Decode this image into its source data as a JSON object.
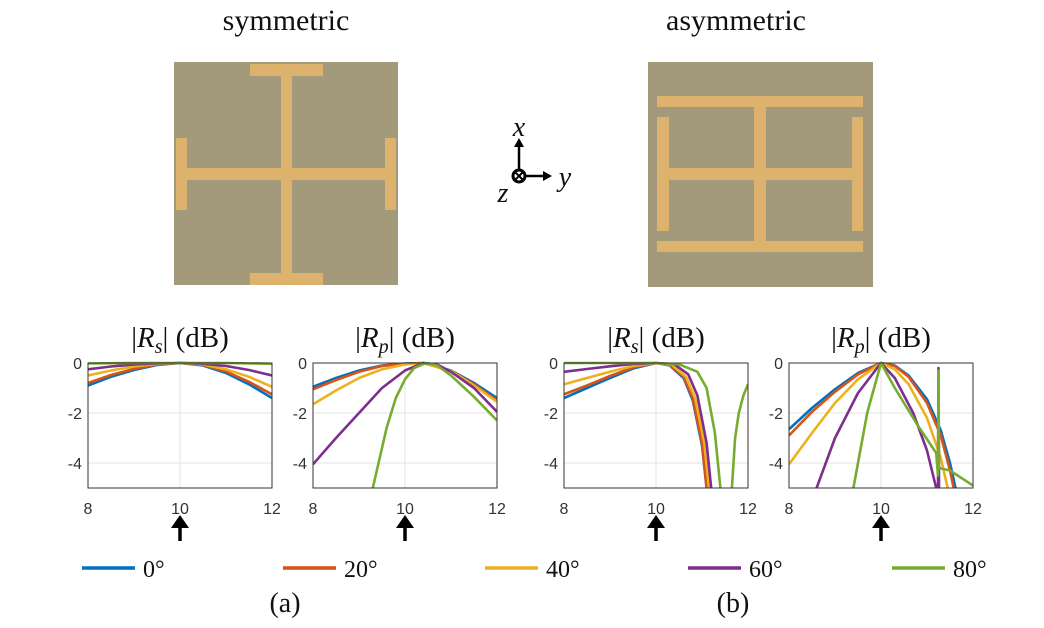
{
  "panels": [
    {
      "label": "(a)",
      "title": "symmetric"
    },
    {
      "label": "(b)",
      "title": "asymmetric"
    }
  ],
  "axes_glyph": {
    "x": "x",
    "y": "y",
    "z": "z"
  },
  "colors": {
    "substrate": "#a39a7c",
    "metal": "#dcb26c"
  },
  "legend": {
    "entries": [
      "0°",
      "20°",
      "40°",
      "60°",
      "80°"
    ],
    "colors": [
      "#0072BD",
      "#D95319",
      "#EDB120",
      "#7E2F8E",
      "#77AC30"
    ]
  },
  "chart_data": [
    {
      "type": "line",
      "panel": "(a)",
      "title_symbol": "R",
      "title_sub": "s",
      "title_unit": "(dB)",
      "xlim": [
        8,
        12
      ],
      "ylim": [
        -5,
        0
      ],
      "xticks": [
        8,
        10,
        12
      ],
      "yticks": [
        0,
        -2,
        -4
      ],
      "grid": true,
      "arrow_at_x": 10,
      "series": [
        {
          "name": "0°",
          "points": [
            [
              8,
              -0.9
            ],
            [
              8.5,
              -0.55
            ],
            [
              9,
              -0.28
            ],
            [
              9.5,
              -0.08
            ],
            [
              10,
              0
            ],
            [
              10.5,
              -0.1
            ],
            [
              11,
              -0.4
            ],
            [
              11.5,
              -0.85
            ],
            [
              12,
              -1.4
            ]
          ]
        },
        {
          "name": "20°",
          "points": [
            [
              8,
              -0.8
            ],
            [
              8.5,
              -0.48
            ],
            [
              9,
              -0.23
            ],
            [
              9.5,
              -0.06
            ],
            [
              10,
              0
            ],
            [
              10.5,
              -0.08
            ],
            [
              11,
              -0.34
            ],
            [
              11.5,
              -0.75
            ],
            [
              12,
              -1.25
            ]
          ]
        },
        {
          "name": "40°",
          "points": [
            [
              8,
              -0.5
            ],
            [
              8.5,
              -0.3
            ],
            [
              9,
              -0.14
            ],
            [
              9.5,
              -0.04
            ],
            [
              10,
              0
            ],
            [
              10.5,
              -0.06
            ],
            [
              11,
              -0.25
            ],
            [
              11.5,
              -0.55
            ],
            [
              12,
              -0.95
            ]
          ]
        },
        {
          "name": "60°",
          "points": [
            [
              8,
              -0.25
            ],
            [
              8.5,
              -0.14
            ],
            [
              9,
              -0.06
            ],
            [
              9.5,
              -0.02
            ],
            [
              10,
              0
            ],
            [
              10.5,
              -0.03
            ],
            [
              11,
              -0.12
            ],
            [
              11.5,
              -0.28
            ],
            [
              12,
              -0.5
            ]
          ]
        },
        {
          "name": "80°",
          "points": [
            [
              8,
              -0.02
            ],
            [
              9,
              0
            ],
            [
              10,
              0
            ],
            [
              11,
              0
            ],
            [
              12,
              -0.03
            ]
          ]
        }
      ]
    },
    {
      "type": "line",
      "panel": "(a)",
      "title_symbol": "R",
      "title_sub": "p",
      "title_unit": "(dB)",
      "xlim": [
        8,
        12
      ],
      "ylim": [
        -5,
        0
      ],
      "xticks": [
        8,
        10,
        12
      ],
      "yticks": [
        0,
        -2,
        -4
      ],
      "grid": true,
      "arrow_at_x": 10,
      "series": [
        {
          "name": "0°",
          "points": [
            [
              8,
              -0.95
            ],
            [
              8.5,
              -0.6
            ],
            [
              9,
              -0.3
            ],
            [
              9.5,
              -0.1
            ],
            [
              10,
              -0.02
            ],
            [
              10.4,
              0
            ],
            [
              11,
              -0.3
            ],
            [
              11.5,
              -0.8
            ],
            [
              12,
              -1.4
            ]
          ]
        },
        {
          "name": "20°",
          "points": [
            [
              8,
              -1.05
            ],
            [
              8.5,
              -0.68
            ],
            [
              9,
              -0.35
            ],
            [
              9.5,
              -0.12
            ],
            [
              10,
              -0.03
            ],
            [
              10.4,
              0
            ],
            [
              11,
              -0.32
            ],
            [
              11.5,
              -0.85
            ],
            [
              12,
              -1.5
            ]
          ]
        },
        {
          "name": "40°",
          "points": [
            [
              8,
              -1.65
            ],
            [
              8.5,
              -1.1
            ],
            [
              9,
              -0.6
            ],
            [
              9.5,
              -0.25
            ],
            [
              10,
              -0.06
            ],
            [
              10.4,
              0
            ],
            [
              11,
              -0.32
            ],
            [
              11.5,
              -0.9
            ],
            [
              12,
              -1.55
            ]
          ]
        },
        {
          "name": "60°",
          "points": [
            [
              8,
              -4.05
            ],
            [
              8.5,
              -3.0
            ],
            [
              9,
              -2.0
            ],
            [
              9.5,
              -1.0
            ],
            [
              10,
              -0.3
            ],
            [
              10.4,
              0
            ],
            [
              10.7,
              -0.06
            ],
            [
              11,
              -0.35
            ],
            [
              11.5,
              -1.0
            ],
            [
              12,
              -1.95
            ]
          ]
        },
        {
          "name": "80°",
          "points": [
            [
              9.3,
              -5
            ],
            [
              9.6,
              -2.6
            ],
            [
              9.8,
              -1.4
            ],
            [
              10,
              -0.65
            ],
            [
              10.2,
              -0.2
            ],
            [
              10.45,
              0
            ],
            [
              10.7,
              -0.1
            ],
            [
              11,
              -0.5
            ],
            [
              11.5,
              -1.35
            ],
            [
              12,
              -2.3
            ]
          ]
        }
      ]
    },
    {
      "type": "line",
      "panel": "(b)",
      "title_symbol": "R",
      "title_sub": "s",
      "title_unit": "(dB)",
      "xlim": [
        8,
        12
      ],
      "ylim": [
        -5,
        0
      ],
      "xticks": [
        8,
        10,
        12
      ],
      "yticks": [
        0,
        -2,
        -4
      ],
      "grid": true,
      "arrow_at_x": 10,
      "series": [
        {
          "name": "0°",
          "points": [
            [
              8,
              -1.4
            ],
            [
              8.5,
              -1.0
            ],
            [
              9,
              -0.6
            ],
            [
              9.5,
              -0.22
            ],
            [
              10,
              0
            ],
            [
              10.3,
              -0.1
            ],
            [
              10.6,
              -0.6
            ],
            [
              10.8,
              -1.5
            ],
            [
              11,
              -3.3
            ],
            [
              11.1,
              -5
            ]
          ]
        },
        {
          "name": "20°",
          "points": [
            [
              8,
              -1.25
            ],
            [
              8.5,
              -0.9
            ],
            [
              9,
              -0.52
            ],
            [
              9.5,
              -0.18
            ],
            [
              10,
              0
            ],
            [
              10.3,
              -0.08
            ],
            [
              10.6,
              -0.55
            ],
            [
              10.8,
              -1.4
            ],
            [
              11,
              -3.2
            ],
            [
              11.1,
              -5
            ]
          ]
        },
        {
          "name": "40°",
          "points": [
            [
              8,
              -0.85
            ],
            [
              8.5,
              -0.6
            ],
            [
              9,
              -0.35
            ],
            [
              9.5,
              -0.12
            ],
            [
              10,
              0
            ],
            [
              10.35,
              -0.08
            ],
            [
              10.65,
              -0.55
            ],
            [
              10.85,
              -1.4
            ],
            [
              11.05,
              -3.2
            ],
            [
              11.15,
              -5
            ]
          ]
        },
        {
          "name": "60°",
          "points": [
            [
              8,
              -0.35
            ],
            [
              8.5,
              -0.24
            ],
            [
              9,
              -0.13
            ],
            [
              9.5,
              -0.04
            ],
            [
              10,
              0
            ],
            [
              10.4,
              -0.05
            ],
            [
              10.7,
              -0.45
            ],
            [
              10.9,
              -1.3
            ],
            [
              11.1,
              -3.2
            ],
            [
              11.2,
              -5
            ]
          ]
        },
        {
          "name": "80°",
          "points": [
            [
              8,
              0
            ],
            [
              9,
              0
            ],
            [
              10,
              0
            ],
            [
              10.5,
              -0.05
            ],
            [
              10.9,
              -0.35
            ],
            [
              11.1,
              -1.0
            ],
            [
              11.28,
              -2.8
            ],
            [
              11.4,
              -5
            ],
            null,
            [
              11.65,
              -5
            ],
            [
              11.72,
              -3.0
            ],
            [
              11.8,
              -2.0
            ],
            [
              11.9,
              -1.3
            ],
            [
              12,
              -0.85
            ]
          ]
        }
      ]
    },
    {
      "type": "line",
      "panel": "(b)",
      "title_symbol": "R",
      "title_sub": "p",
      "title_unit": "(dB)",
      "xlim": [
        8,
        12
      ],
      "ylim": [
        -5,
        0
      ],
      "xticks": [
        8,
        10,
        12
      ],
      "yticks": [
        0,
        -2,
        -4
      ],
      "grid": true,
      "arrow_at_x": 10,
      "series": [
        {
          "name": "0°",
          "points": [
            [
              8,
              -2.65
            ],
            [
              8.5,
              -1.8
            ],
            [
              9,
              -1.05
            ],
            [
              9.5,
              -0.4
            ],
            [
              10,
              0
            ],
            [
              10.3,
              -0.1
            ],
            [
              10.6,
              -0.5
            ],
            [
              11,
              -1.45
            ],
            [
              11.3,
              -2.7
            ],
            [
              11.5,
              -4.0
            ],
            [
              11.62,
              -5
            ]
          ]
        },
        {
          "name": "20°",
          "points": [
            [
              8,
              -2.9
            ],
            [
              8.5,
              -1.95
            ],
            [
              9,
              -1.15
            ],
            [
              9.5,
              -0.45
            ],
            [
              10,
              0
            ],
            [
              10.3,
              -0.12
            ],
            [
              10.6,
              -0.55
            ],
            [
              11,
              -1.6
            ],
            [
              11.3,
              -2.9
            ],
            [
              11.5,
              -4.3
            ],
            [
              11.58,
              -5
            ]
          ]
        },
        {
          "name": "40°",
          "points": [
            [
              8,
              -4.05
            ],
            [
              8.5,
              -2.8
            ],
            [
              9,
              -1.6
            ],
            [
              9.5,
              -0.65
            ],
            [
              10,
              0
            ],
            [
              10.3,
              -0.25
            ],
            [
              10.6,
              -0.85
            ],
            [
              11,
              -2.2
            ],
            [
              11.3,
              -3.8
            ],
            [
              11.45,
              -5
            ]
          ]
        },
        {
          "name": "60°",
          "points": [
            [
              8.6,
              -5
            ],
            [
              9,
              -3.0
            ],
            [
              9.5,
              -1.2
            ],
            [
              10,
              0
            ],
            [
              10.3,
              -0.6
            ],
            [
              10.7,
              -2.0
            ],
            [
              11,
              -3.5
            ],
            [
              11.2,
              -5
            ],
            null,
            [
              11.24,
              -5
            ],
            [
              11.25,
              -0.2
            ],
            [
              11.26,
              -5
            ]
          ]
        },
        {
          "name": "80°",
          "points": [
            [
              9.4,
              -5
            ],
            [
              9.7,
              -2.0
            ],
            [
              10,
              0
            ],
            [
              10.3,
              -1.0
            ],
            [
              10.8,
              -2.5
            ],
            [
              11.2,
              -3.6
            ],
            [
              11.24,
              -4.5
            ],
            [
              11.25,
              -0.3
            ],
            [
              11.26,
              -4.2
            ],
            [
              11.5,
              -4.3
            ],
            [
              12,
              -4.9
            ]
          ]
        }
      ]
    }
  ]
}
